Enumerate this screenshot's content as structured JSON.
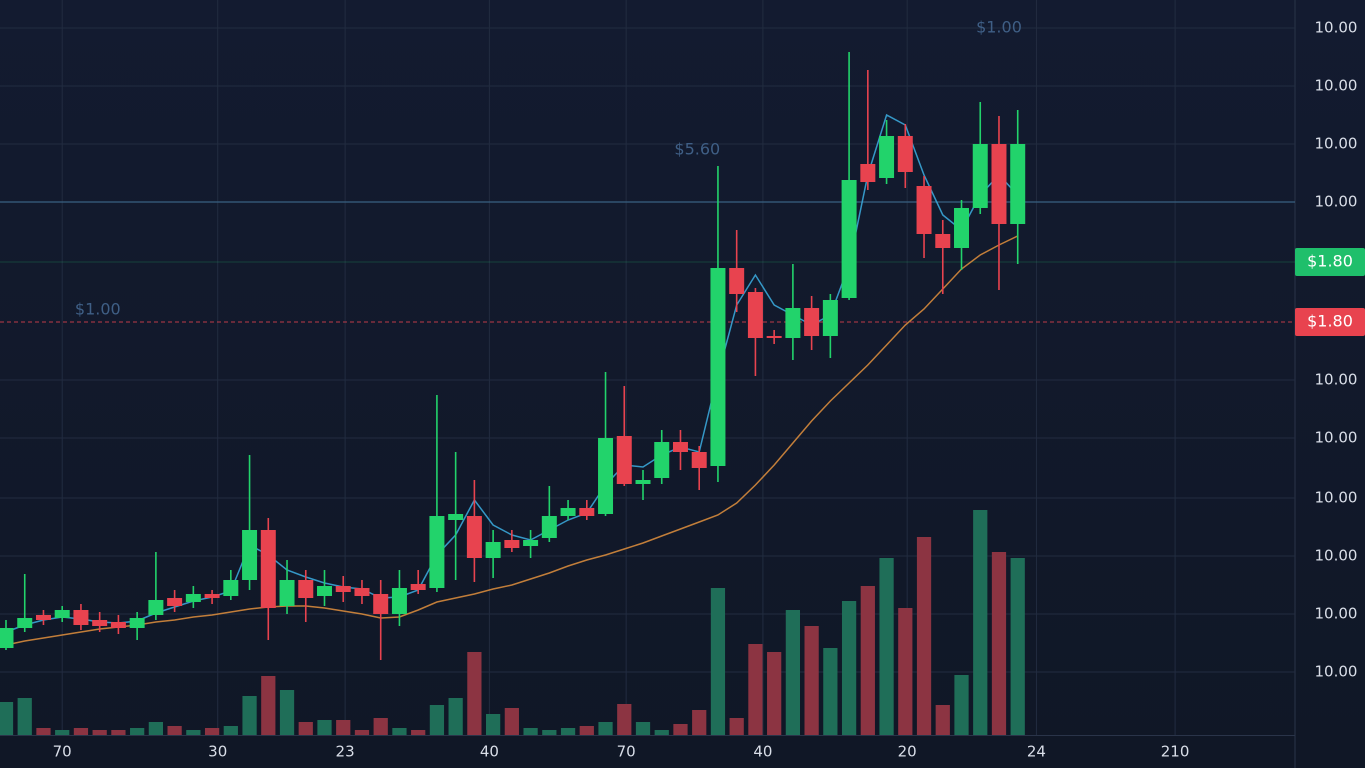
{
  "chart_data": {
    "type": "candlestick",
    "up_color": "#22d36b",
    "down_color": "#e8434f",
    "volume_up_color": "#1f6e58",
    "volume_down_color": "#8c3442",
    "grid": true,
    "xlim": [
      -0.32,
      68.8
    ],
    "ylim": [
      0,
      735
    ],
    "xticks": [
      {
        "value": 3.0,
        "label": "70"
      },
      {
        "value": 11.3,
        "label": "30"
      },
      {
        "value": 18.1,
        "label": "23"
      },
      {
        "value": 25.8,
        "label": "40"
      },
      {
        "value": 33.1,
        "label": "70"
      },
      {
        "value": 40.4,
        "label": "40"
      },
      {
        "value": 48.1,
        "label": "20"
      },
      {
        "value": 55.0,
        "label": "24"
      },
      {
        "value": 62.4,
        "label": "210"
      }
    ],
    "yticks": [
      {
        "value": 63,
        "label": "10.00"
      },
      {
        "value": 121,
        "label": "10.00"
      },
      {
        "value": 179,
        "label": "10.00"
      },
      {
        "value": 237,
        "label": "10.00"
      },
      {
        "value": 297,
        "label": "10.00"
      },
      {
        "value": 355,
        "label": "10.00"
      },
      {
        "value": 533,
        "label": "10.00"
      },
      {
        "value": 591,
        "label": "10.00"
      },
      {
        "value": 649,
        "label": "10.00"
      },
      {
        "value": 707,
        "label": "10.00"
      }
    ],
    "reference_line": 533,
    "price_markers": [
      {
        "value": 473,
        "label": "$1.80",
        "color": "#1fbf6b",
        "dashed": false
      },
      {
        "value": 413,
        "label": "$1.80",
        "color": "#e8434f",
        "dashed": true
      }
    ],
    "annotations": [
      {
        "text": "$1.00",
        "x": 53.0,
        "y": 707
      },
      {
        "text": "$5.60",
        "x": 36.9,
        "y": 585
      },
      {
        "text": "$1.00",
        "x": 4.9,
        "y": 425
      }
    ],
    "open": [
      87,
      107,
      120,
      117,
      125,
      115,
      113,
      107,
      120,
      137,
      133,
      141,
      139,
      155,
      205,
      129,
      155,
      139,
      149,
      147,
      141,
      121,
      151,
      147,
      215,
      219,
      177,
      195,
      189,
      197,
      219,
      227,
      221,
      299,
      251,
      257,
      293,
      283,
      269,
      467,
      443,
      399,
      397,
      427,
      399,
      437,
      571,
      557,
      599,
      549,
      501,
      487,
      527,
      591,
      511
    ],
    "high": [
      115,
      161,
      125,
      129,
      131,
      123,
      120,
      123,
      183,
      145,
      149,
      145,
      165,
      280,
      217,
      175,
      165,
      165,
      159,
      155,
      155,
      165,
      165,
      340,
      283,
      255,
      205,
      205,
      205,
      249,
      235,
      235,
      363,
      349,
      265,
      305,
      305,
      289,
      569,
      505,
      447,
      405,
      471,
      439,
      441,
      683,
      665,
      615,
      611,
      559,
      515,
      535,
      633,
      619,
      625
    ],
    "low": [
      85,
      103,
      110,
      113,
      105,
      103,
      101,
      95,
      115,
      123,
      127,
      131,
      135,
      145,
      95,
      121,
      113,
      129,
      133,
      131,
      75,
      109,
      141,
      143,
      155,
      153,
      157,
      183,
      177,
      193,
      215,
      215,
      219,
      249,
      235,
      251,
      265,
      245,
      253,
      423,
      359,
      391,
      375,
      385,
      377,
      435,
      545,
      551,
      547,
      477,
      441,
      465,
      521,
      445,
      471
    ],
    "close": [
      107,
      117,
      115,
      125,
      110,
      109,
      107,
      117,
      135,
      129,
      141,
      137,
      155,
      205,
      127,
      155,
      137,
      149,
      143,
      139,
      121,
      147,
      145,
      219,
      221,
      177,
      193,
      187,
      195,
      219,
      227,
      219,
      297,
      251,
      255,
      293,
      283,
      267,
      467,
      441,
      397,
      397,
      427,
      399,
      435,
      555,
      553,
      599,
      563,
      501,
      487,
      527,
      591,
      511,
      591
    ],
    "volume": [
      33,
      37,
      7,
      5,
      7,
      5,
      5,
      7,
      13,
      9,
      5,
      7,
      9,
      39,
      59,
      45,
      13,
      15,
      15,
      5,
      17,
      7,
      5,
      30,
      37,
      83,
      21,
      27,
      7,
      5,
      7,
      9,
      13,
      31,
      13,
      5,
      11,
      25,
      147,
      17,
      91,
      83,
      125,
      109,
      87,
      134,
      149,
      177,
      127,
      198,
      30,
      60,
      225,
      183,
      177
    ],
    "ma_fast": {
      "color": "#3aa6d8",
      "values": [
        103,
        110,
        115,
        118,
        116,
        113,
        112,
        114,
        122,
        128,
        134,
        138,
        144,
        190,
        180,
        165,
        158,
        152,
        148,
        146,
        137,
        138,
        145,
        180,
        200,
        235,
        210,
        200,
        195,
        205,
        215,
        222,
        250,
        270,
        268,
        280,
        288,
        283,
        360,
        430,
        460,
        430,
        420,
        410,
        420,
        470,
        560,
        620,
        610,
        560,
        520,
        505,
        540,
        560,
        540
      ]
    },
    "ma_slow": {
      "color": "#d68a3c",
      "values": [
        90,
        94,
        97,
        100,
        103,
        106,
        108,
        110,
        113,
        115,
        118,
        120,
        123,
        126,
        128,
        129,
        129,
        127,
        124,
        121,
        117,
        118,
        125,
        133,
        137,
        141,
        146,
        150,
        156,
        162,
        169,
        175,
        180,
        186,
        192,
        199,
        206,
        213,
        220,
        232,
        250,
        270,
        292,
        314,
        334,
        352,
        370,
        390,
        410,
        426,
        446,
        466,
        480,
        490,
        499
      ]
    }
  }
}
